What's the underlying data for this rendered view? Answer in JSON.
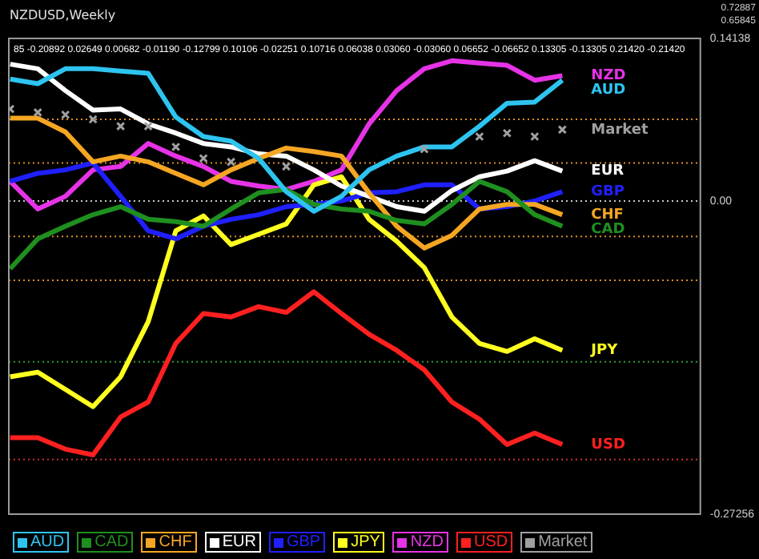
{
  "chart_data": {
    "type": "line",
    "title": "NZDUSD,Weekly",
    "annotations": [
      "85 -0.20892 0.02649 0.00682 -0.01190 -0.12799 0.10106 -0.02251 0.10716 0.06038 0.03060 -0.03060 0.06652 -0.06652 0.13305 -0.13305 0.21420 -0.21420",
      "0.72887",
      "0.65845"
    ],
    "categories": [
      null,
      null,
      null,
      null,
      null,
      null,
      null,
      null,
      null,
      null,
      null,
      null,
      null,
      null,
      null,
      null,
      null,
      null,
      null,
      null,
      null
    ],
    "series": [
      {
        "name": "AUD",
        "color": "#2ec4f0",
        "values": [
          0.106,
          0.102,
          0.115,
          0.115,
          0.113,
          0.111,
          0.073,
          0.056,
          0.052,
          0.037,
          0.008,
          -0.009,
          0.004,
          0.027,
          0.039,
          0.047,
          0.047,
          0.065,
          0.085,
          0.086,
          0.105
        ]
      },
      {
        "name": "CAD",
        "color": "#1f8f1f",
        "values": [
          -0.059,
          -0.033,
          -0.022,
          -0.012,
          -0.005,
          -0.016,
          -0.018,
          -0.022,
          -0.007,
          0.007,
          0.01,
          -0.003,
          -0.007,
          -0.009,
          -0.017,
          -0.02,
          -0.003,
          0.017,
          0.008,
          -0.012,
          -0.022
        ]
      },
      {
        "name": "CHF",
        "color": "#f5a623",
        "values": [
          0.072,
          0.072,
          0.06,
          0.034,
          0.039,
          0.034,
          0.024,
          0.014,
          0.027,
          0.037,
          0.046,
          0.043,
          0.039,
          0.007,
          -0.022,
          -0.041,
          -0.03,
          -0.007,
          -0.003,
          -0.003,
          -0.012
        ]
      },
      {
        "name": "EUR",
        "color": "#ffffff",
        "values": [
          0.119,
          0.115,
          0.096,
          0.079,
          0.08,
          0.067,
          0.059,
          0.05,
          0.047,
          0.041,
          0.039,
          0.027,
          0.013,
          0.004,
          -0.005,
          -0.009,
          0.009,
          0.021,
          0.026,
          0.035,
          0.026
        ]
      },
      {
        "name": "GBP",
        "color": "#2020ff",
        "values": [
          0.017,
          0.024,
          0.027,
          0.033,
          0.004,
          -0.026,
          -0.033,
          -0.022,
          -0.016,
          -0.012,
          -0.005,
          -0.003,
          0,
          0.007,
          0.008,
          0.014,
          0.014,
          -0.007,
          -0.005,
          0,
          0.008
        ]
      },
      {
        "name": "JPY",
        "color": "#ffff20",
        "values": [
          -0.153,
          -0.149,
          -0.164,
          -0.179,
          -0.153,
          -0.105,
          -0.026,
          -0.013,
          -0.038,
          -0.029,
          -0.02,
          0.014,
          0.021,
          -0.016,
          -0.035,
          -0.058,
          -0.101,
          -0.124,
          -0.131,
          -0.12,
          -0.13
        ]
      },
      {
        "name": "NZD",
        "color": "#e633e6",
        "values": [
          0.017,
          -0.007,
          0.004,
          0.027,
          0.03,
          0.05,
          0.039,
          0.03,
          0.017,
          0.013,
          0.01,
          0.017,
          0.027,
          0.067,
          0.096,
          0.115,
          0.122,
          0.12,
          0.118,
          0.105,
          0.109
        ]
      },
      {
        "name": "USD",
        "color": "#ff2020",
        "values": [
          -0.206,
          -0.206,
          -0.216,
          -0.221,
          -0.188,
          -0.175,
          -0.124,
          -0.098,
          -0.101,
          -0.092,
          -0.097,
          -0.079,
          -0.098,
          -0.116,
          -0.13,
          -0.147,
          -0.175,
          -0.19,
          -0.212,
          -0.202,
          -0.212
        ]
      },
      {
        "name": "Market",
        "type": "scatter",
        "marker": "cross",
        "color": "#a0a0a0",
        "values": [
          0.08,
          0.077,
          0.075,
          0.071,
          0.065,
          0.065,
          0.047,
          0.037,
          0.034,
          null,
          0.03,
          null,
          null,
          null,
          null,
          0.045,
          null,
          0.056,
          0.059,
          0.056,
          0.062
        ]
      }
    ],
    "ylim": [
      -0.27256,
      0.14138
    ],
    "yticks": [
      0.14138,
      {
        "value": 0,
        "label": "0.00"
      },
      -0.27256
    ],
    "ref_lines": [
      {
        "axis": "y",
        "value": 0.071,
        "color": "#d98c2b",
        "line_style": "dotted"
      },
      {
        "axis": "y",
        "value": 0.033,
        "color": "#d98c2b",
        "line_style": "dotted"
      },
      {
        "axis": "y",
        "value": 0,
        "color": "#c8c8c8",
        "line_style": "dotted"
      },
      {
        "axis": "y",
        "value": -0.031,
        "color": "#d98c2b",
        "line_style": "dotted"
      },
      {
        "axis": "y",
        "value": -0.069,
        "color": "#d98c2b",
        "line_style": "dotted"
      },
      {
        "axis": "y",
        "value": -0.14,
        "color": "#2e9e2e",
        "line_style": "dotted"
      },
      {
        "axis": "y",
        "value": -0.225,
        "color": "#c83232",
        "line_style": "dotted"
      }
    ],
    "legend": "bottom left",
    "marker": "none",
    "line_style": "solid",
    "grid": false
  }
}
